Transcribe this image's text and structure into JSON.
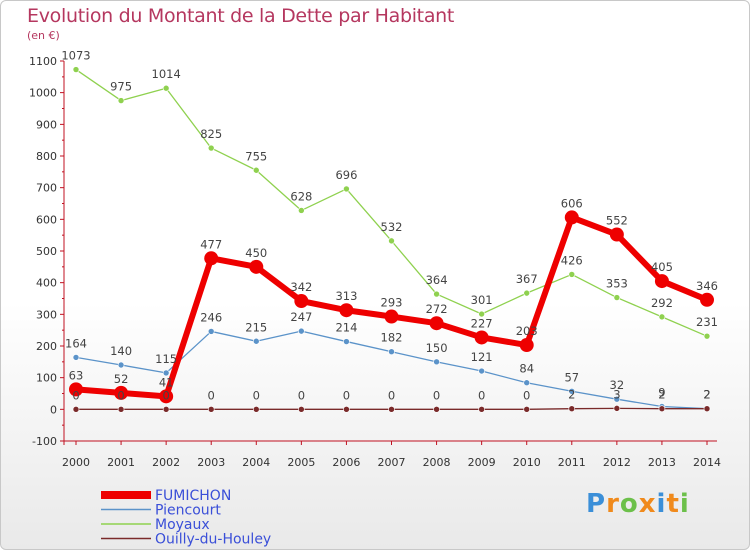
{
  "chart_data": {
    "type": "line",
    "title": "Evolution du Montant de la Dette par Habitant",
    "subtitle": "(en €)",
    "x": [
      "2000",
      "2001",
      "2002",
      "2003",
      "2004",
      "2005",
      "2006",
      "2007",
      "2008",
      "2009",
      "2010",
      "2011",
      "2012",
      "2013",
      "2014"
    ],
    "ylim": [
      -100,
      1100
    ],
    "yticks": [
      -100,
      0,
      100,
      200,
      300,
      400,
      500,
      600,
      700,
      800,
      900,
      1000,
      1100
    ],
    "grid": false,
    "legend": "bottom-left",
    "series": [
      {
        "name": "FUMICHON",
        "color": "#ee0000",
        "values": [
          63,
          52,
          41,
          477,
          450,
          342,
          313,
          293,
          272,
          227,
          203,
          606,
          552,
          405,
          346
        ],
        "labels": [
          "63",
          "52",
          "41",
          "477",
          "450",
          "342",
          "313",
          "293",
          "272",
          "227",
          "203",
          "606",
          "552",
          "405",
          "346"
        ]
      },
      {
        "name": "Piencourt",
        "color": "#5b93c9",
        "values": [
          164,
          140,
          115,
          246,
          215,
          247,
          214,
          182,
          150,
          121,
          84,
          57,
          32,
          9,
          2
        ],
        "labels": [
          "164",
          "140",
          "115",
          "246",
          "215",
          "247",
          "214",
          "182",
          "150",
          "121",
          "84",
          "57",
          "32",
          "9",
          "2"
        ]
      },
      {
        "name": "Moyaux",
        "color": "#8fd14f",
        "values": [
          1073,
          975,
          1014,
          825,
          755,
          628,
          696,
          532,
          364,
          301,
          367,
          426,
          353,
          292,
          231
        ],
        "labels": [
          "1073",
          "975",
          "1014",
          "825",
          "755",
          "628",
          "696",
          "532",
          "364",
          "301",
          "367",
          "426",
          "353",
          "292",
          "231"
        ]
      },
      {
        "name": "Ouilly-du-Houley",
        "color": "#7a2a2a",
        "values": [
          0,
          0,
          0,
          0,
          0,
          0,
          0,
          0,
          0,
          0,
          0,
          2,
          3,
          2,
          2
        ],
        "labels": [
          "0",
          "0",
          "0",
          "0",
          "0",
          "0",
          "0",
          "0",
          "0",
          "0",
          "0",
          "2",
          "3",
          "2",
          "2"
        ]
      }
    ]
  },
  "logo": {
    "letters": [
      "P",
      "r",
      "o",
      "x",
      "i",
      "t",
      "i"
    ],
    "colors": [
      "#3b8fd8",
      "#f08a1c",
      "#6cc04a",
      "#f08a1c",
      "#3b8fd8",
      "#f08a1c",
      "#6cc04a"
    ]
  }
}
